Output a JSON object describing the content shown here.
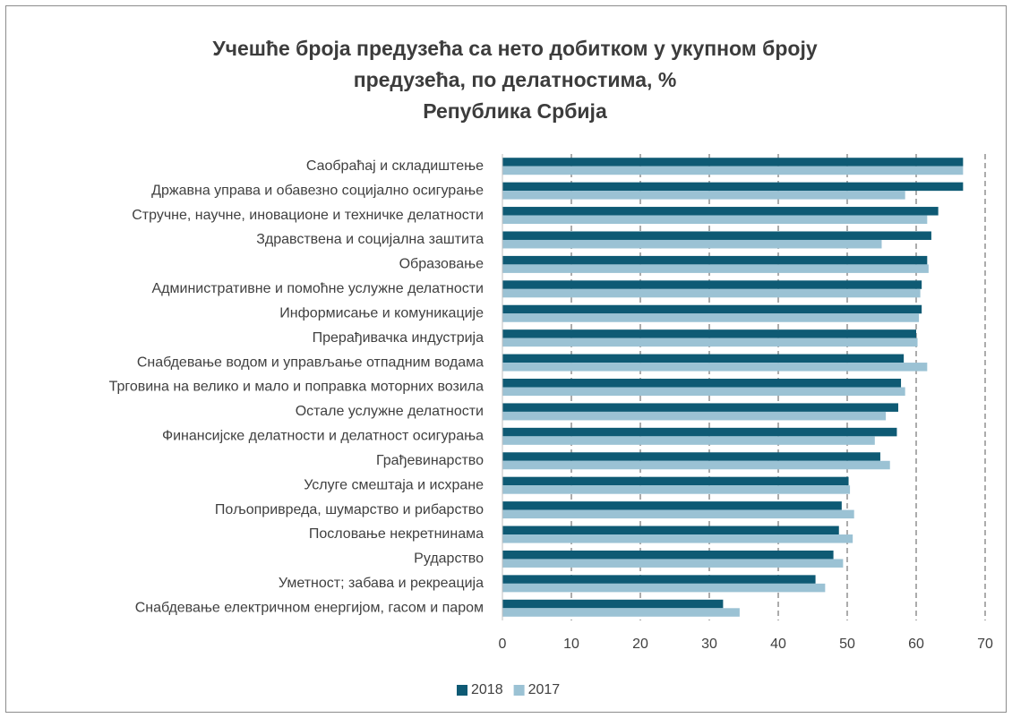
{
  "chart_data": {
    "type": "barh",
    "title": [
      "Учешће броја предузећа са нето добитком у укупном броју",
      "предузећа, по делатностима, %",
      "Република Србија"
    ],
    "categories": [
      "Саобраћај и складиштење",
      "Државна управа и обавезно социјално осигурање",
      "Стручне, научне, иновационе и техничке делатности",
      "Здравствена и социјална заштита",
      "Образовање",
      "Административне и помоћне услужне делатности",
      "Информисање и комуникације",
      "Прерађивачка индустрија",
      "Снабдевање водом и управљање отпадним водама",
      "Трговина на велико и мало и поправка моторних возила",
      "Остале услужне делатности",
      "Финансијске делатности и делатност осигурања",
      "Грађевинарство",
      "Услуге смештаја и исхране",
      "Пољопривреда, шумарство и рибарство",
      "Пословање некретнинама",
      "Рударство",
      "Уметност; забава и рекреација",
      "Снабдевање електричном енергијом, гасом и паром"
    ],
    "series": [
      {
        "name": "2018",
        "color": "#0e5a74",
        "values": [
          66.8,
          66.8,
          63.2,
          62.2,
          61.6,
          60.8,
          60.8,
          60.0,
          58.2,
          57.8,
          57.4,
          57.2,
          54.8,
          50.2,
          49.2,
          48.8,
          48.0,
          45.4,
          32.0
        ]
      },
      {
        "name": "2017",
        "color": "#9bc2d4",
        "values": [
          66.8,
          58.4,
          61.6,
          55.0,
          61.8,
          60.6,
          60.4,
          60.2,
          61.6,
          58.4,
          55.6,
          54.0,
          56.2,
          50.4,
          51.0,
          50.8,
          49.4,
          46.8,
          34.4
        ]
      }
    ],
    "xlim": [
      0,
      70
    ],
    "xticks": [
      0,
      10,
      20,
      30,
      40,
      50,
      60,
      70
    ],
    "grid": true,
    "legend": "bottom"
  }
}
